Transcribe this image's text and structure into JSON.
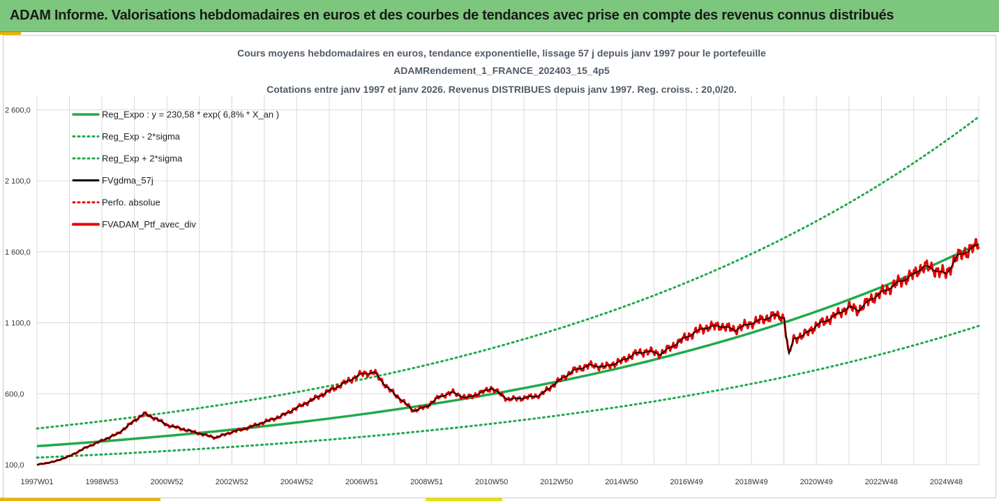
{
  "banner": {
    "title": "ADAM Informe. Valorisations hebdomadaires en euros et des courbes de tendances avec prise en compte des revenus connus distribués"
  },
  "colors": {
    "banner_bg": "#7dc67d",
    "accent": "#e8b400",
    "trend": "#1faa4b",
    "smooth": "#000000",
    "perf": "#e60000",
    "grid": "#d9d9d9",
    "title_text": "#505a66"
  },
  "chart_data": {
    "type": "line",
    "title_lines": [
      "Cours moyens hebdomadaires  en euros, tendance exponentielle, lissage 57 j depuis janv 1997 pour le portefeuille",
      "ADAMRendement_1_FRANCE_202403_15_4p5",
      "Cotations entre janv 1997 et janv 2026. Revenus DISTRIBUES depuis janv 1997. Reg. croiss. : 20,0/20."
    ],
    "x_ticks": [
      "1997W01",
      "1998W53",
      "2000W52",
      "2002W52",
      "2004W52",
      "2006W51",
      "2008W51",
      "2010W50",
      "2012W50",
      "2014W50",
      "2016W49",
      "2018W49",
      "2020W49",
      "2022W48",
      "2024W48"
    ],
    "x_range_years": [
      1997.0,
      2026.0
    ],
    "y_ticks": [
      "100,0",
      "600,0",
      "1 100,0",
      "1 600,0",
      "2 100,0",
      "2 600,0"
    ],
    "y_tick_values": [
      100,
      600,
      1100,
      1600,
      2100,
      2600
    ],
    "ylim": [
      100,
      2700
    ],
    "grid": true,
    "legend_position": "top-left",
    "series": [
      {
        "name": "Reg_Expo : y = 230,58 * exp( 6,8% *  X_an )",
        "style": "solid-thick",
        "color": "#1faa4b",
        "formula": {
          "a": 230.58,
          "b": 0.068
        }
      },
      {
        "name": "Reg_Exp - 2*sigma",
        "style": "dotted",
        "color": "#1faa4b",
        "formula": {
          "a": 150,
          "b": 0.068
        }
      },
      {
        "name": "Reg_Exp + 2*sigma",
        "style": "dotted",
        "color": "#1faa4b",
        "formula": {
          "a": 355,
          "b": 0.068
        }
      },
      {
        "name": "FVgdma_57j",
        "style": "solid",
        "color": "#000000"
      },
      {
        "name": "Perfo. absolue",
        "style": "dotted",
        "color": "#e60000"
      },
      {
        "name": "FVADAM_Ptf_avec_div",
        "style": "solid-thick",
        "color": "#e60000"
      }
    ],
    "price_anchors": {
      "x": [
        1997.0,
        1997.5,
        1998.0,
        1998.5,
        1999.0,
        1999.5,
        2000.0,
        2000.3,
        2000.7,
        2001.0,
        2001.5,
        2002.0,
        2002.5,
        2003.0,
        2003.5,
        2004.0,
        2004.5,
        2005.0,
        2005.5,
        2006.0,
        2006.5,
        2007.0,
        2007.4,
        2007.8,
        2008.2,
        2008.6,
        2009.0,
        2009.4,
        2009.8,
        2010.2,
        2010.6,
        2011.0,
        2011.5,
        2012.0,
        2012.5,
        2013.0,
        2013.5,
        2014.0,
        2014.5,
        2015.0,
        2015.4,
        2015.8,
        2016.2,
        2016.6,
        2017.0,
        2017.5,
        2018.0,
        2018.5,
        2018.9,
        2019.3,
        2019.7,
        2020.0,
        2020.15,
        2020.3,
        2020.6,
        2021.0,
        2021.5,
        2022.0,
        2022.3,
        2022.7,
        2023.0,
        2023.5,
        2024.0,
        2024.3,
        2024.7,
        2025.0,
        2025.3,
        2025.6,
        2026.0
      ],
      "y": [
        100,
        120,
        160,
        220,
        270,
        320,
        410,
        460,
        420,
        380,
        350,
        320,
        290,
        330,
        360,
        400,
        440,
        500,
        560,
        620,
        680,
        740,
        750,
        640,
        560,
        480,
        510,
        580,
        610,
        570,
        600,
        640,
        560,
        570,
        590,
        680,
        760,
        800,
        790,
        830,
        880,
        900,
        880,
        940,
        1000,
        1060,
        1080,
        1050,
        1090,
        1120,
        1150,
        1140,
        870,
        990,
        1010,
        1080,
        1140,
        1210,
        1190,
        1270,
        1310,
        1380,
        1440,
        1500,
        1470,
        1440,
        1560,
        1600,
        1650
      ]
    }
  },
  "legend": {
    "items": [
      "Reg_Expo : y = 230,58 * exp( 6,8% *  X_an )",
      "Reg_Exp - 2*sigma",
      "Reg_Exp + 2*sigma",
      "FVgdma_57j",
      "Perfo. absolue",
      "FVADAM_Ptf_avec_div"
    ]
  }
}
